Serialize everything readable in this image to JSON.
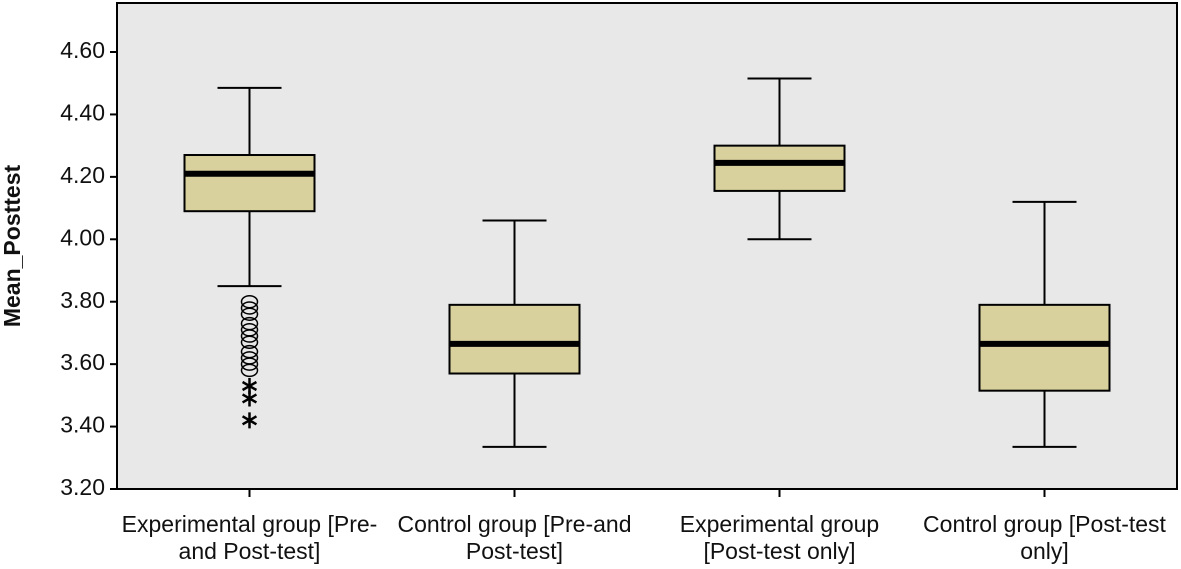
{
  "chart_data": {
    "type": "box",
    "y_label": "Mean_Posttest",
    "categories": [
      "Experimental group [Pre-and Post-test]",
      "Control group [Pre-and Post-test]",
      "Experimental group [Post-test only]",
      "Control group [Post-test only]"
    ],
    "color": "#d8d19d",
    "boxes": [
      {
        "low": 3.85,
        "q1": 4.09,
        "median": 4.21,
        "q3": 4.27,
        "high": 4.485,
        "outliers": [
          3.8,
          3.78,
          3.76,
          3.73,
          3.71,
          3.69,
          3.67,
          3.64,
          3.62,
          3.6,
          3.58
        ],
        "extremes": [
          3.53,
          3.49,
          3.42
        ]
      },
      {
        "low": 3.335,
        "q1": 3.57,
        "median": 3.665,
        "q3": 3.79,
        "high": 4.06,
        "outliers": [],
        "extremes": []
      },
      {
        "low": 4.0,
        "q1": 4.155,
        "median": 4.245,
        "q3": 4.3,
        "high": 4.515,
        "outliers": [],
        "extremes": []
      },
      {
        "low": 3.335,
        "q1": 3.515,
        "median": 3.665,
        "q3": 3.79,
        "high": 4.12,
        "outliers": [],
        "extremes": []
      }
    ],
    "ylim": [
      3.2,
      4.757
    ],
    "yticks": [
      {
        "value": 3.2,
        "label": "3.20"
      },
      {
        "value": 3.4,
        "label": "3.40"
      },
      {
        "value": 3.6,
        "label": "3.60"
      },
      {
        "value": 3.8,
        "label": "3.80"
      },
      {
        "value": 4.0,
        "label": "4.00"
      },
      {
        "value": 4.2,
        "label": "4.20"
      },
      {
        "value": 4.4,
        "label": "4.40"
      },
      {
        "value": 4.6,
        "label": "4.60"
      }
    ]
  }
}
